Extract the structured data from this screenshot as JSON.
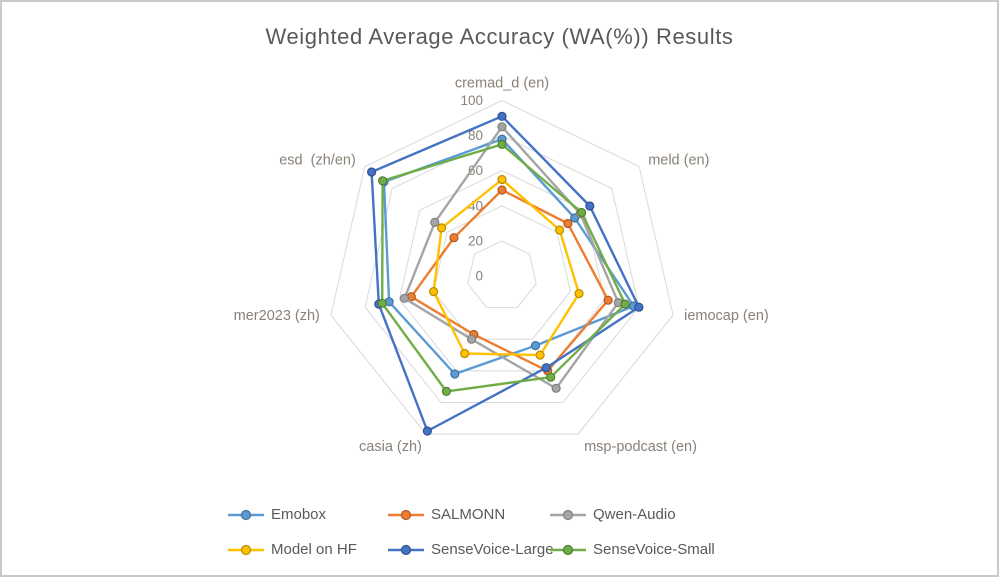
{
  "window": {
    "title": "Weighted Average Accuracy (WA(%)) Results"
  },
  "colors": {
    "background": "#FFFFFF",
    "frame_border": "#C9C9C9",
    "title_text": "#595959",
    "axis_label_text": "#8A8178",
    "tick_label_text": "#8A8178",
    "gridline": "#D9D9D9",
    "legend_text": "#595959"
  },
  "chart_data": {
    "type": "radar",
    "title": "Weighted Average Accuracy (WA(%)) Results",
    "axes": [
      "cremad_d (en)",
      "meld (en)",
      "iemocap (en)",
      "msp-podcast (en)",
      "casia (zh)",
      "mer2023 (zh)",
      "esd  (zh/en)"
    ],
    "ticks": [
      0,
      20,
      40,
      60,
      80,
      100
    ],
    "tick_labels": [
      "0",
      "20",
      "40",
      "60",
      "80",
      "100"
    ],
    "range": [
      0,
      100
    ],
    "grid": true,
    "legend_position": "bottom",
    "value_unit": "WA(%)",
    "series": [
      {
        "name": "Emobox",
        "color": "#5B9BD5",
        "marker_border": "#41719C",
        "values": [
          78,
          53,
          77,
          44,
          62,
          66,
          86
        ]
      },
      {
        "name": "SALMONN",
        "color": "#ED7D31",
        "marker_border": "#AE5A21",
        "values": [
          49,
          48,
          62,
          60,
          37,
          53,
          35
        ]
      },
      {
        "name": "Qwen-Audio",
        "color": "#A5A5A5",
        "marker_border": "#7F7F7F",
        "values": [
          85,
          57,
          68,
          71,
          40,
          57,
          49
        ]
      },
      {
        "name": "Model on HF",
        "color": "#FFC000",
        "marker_border": "#BC8C00",
        "values": [
          55,
          42,
          45,
          50,
          49,
          40,
          44
        ]
      },
      {
        "name": "SenseVoice-Large",
        "color": "#4472C4",
        "marker_border": "#2F528F",
        "values": [
          91,
          64,
          80,
          58,
          98,
          72,
          95
        ]
      },
      {
        "name": "SenseVoice-Small",
        "color": "#70AD47",
        "marker_border": "#507E32",
        "values": [
          75,
          58,
          72,
          64,
          73,
          70,
          87
        ]
      }
    ]
  }
}
